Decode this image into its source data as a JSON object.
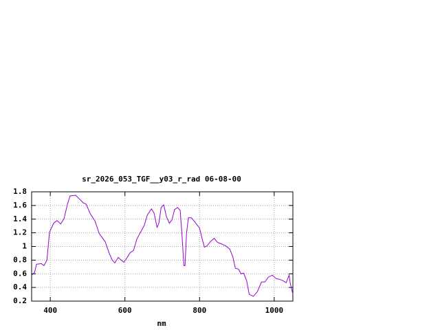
{
  "chart_data": {
    "type": "line",
    "title": "sr_2026_053_TGF__y03_r_rad 06-08-00",
    "x_label": "nm",
    "xlim": [
      350,
      1050
    ],
    "xticks": [
      400,
      600,
      800,
      1000
    ],
    "ylim": [
      0.2,
      1.8
    ],
    "yticks": [
      0.2,
      0.4,
      0.6,
      0.8,
      1,
      1.2,
      1.4,
      1.6,
      1.8
    ],
    "grid": true,
    "x": [
      350,
      358,
      363,
      376,
      383,
      391,
      394,
      398,
      409,
      418,
      428,
      437,
      446,
      453,
      468,
      479,
      488,
      496,
      507,
      520,
      531,
      547,
      558,
      566,
      573,
      582,
      590,
      597,
      605,
      614,
      623,
      632,
      641,
      652,
      660,
      671,
      678,
      686,
      691,
      697,
      704,
      711,
      719,
      726,
      733,
      741,
      748,
      752,
      758,
      761,
      765,
      770,
      778,
      787,
      800,
      807,
      813,
      820,
      829,
      839,
      848,
      857,
      870,
      881,
      889,
      896,
      904,
      911,
      918,
      926,
      933,
      944,
      955,
      966,
      975,
      984,
      995,
      1005,
      1014,
      1023,
      1032,
      1040,
      1043,
      1050
    ],
    "series": [
      {
        "color": "#9400d3",
        "values": [
          0.58,
          0.62,
          0.74,
          0.75,
          0.72,
          0.8,
          0.98,
          1.21,
          1.34,
          1.38,
          1.33,
          1.41,
          1.62,
          1.74,
          1.75,
          1.69,
          1.64,
          1.62,
          1.48,
          1.37,
          1.19,
          1.07,
          0.9,
          0.8,
          0.76,
          0.84,
          0.8,
          0.77,
          0.83,
          0.91,
          0.94,
          1.11,
          1.2,
          1.31,
          1.46,
          1.55,
          1.49,
          1.28,
          1.34,
          1.57,
          1.61,
          1.44,
          1.34,
          1.39,
          1.54,
          1.57,
          1.53,
          1.24,
          0.72,
          0.72,
          1.19,
          1.42,
          1.42,
          1.36,
          1.27,
          1.11,
          0.99,
          1.01,
          1.07,
          1.12,
          1.06,
          1.04,
          1.01,
          0.96,
          0.85,
          0.68,
          0.67,
          0.6,
          0.61,
          0.5,
          0.3,
          0.27,
          0.34,
          0.48,
          0.48,
          0.55,
          0.58,
          0.53,
          0.52,
          0.5,
          0.47,
          0.58,
          0.46,
          0.3
        ]
      }
    ]
  }
}
